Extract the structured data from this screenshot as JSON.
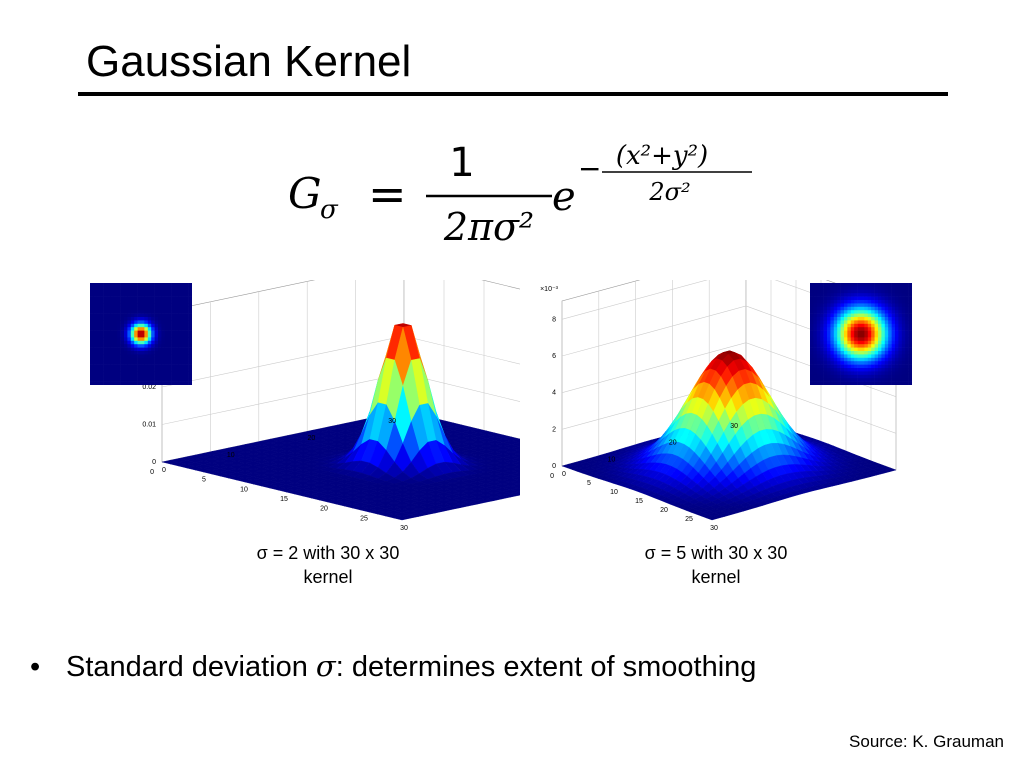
{
  "slide": {
    "title": "Gaussian Kernel",
    "formula": {
      "lhs_symbol": "G",
      "lhs_subscript": "σ",
      "equals": "=",
      "numerator": "1",
      "denominator": "2πσ²",
      "base": "e",
      "exponent_sign": "−",
      "exponent_numerator": "(x²+y²)",
      "exponent_denominator": "2σ²"
    },
    "bullet": {
      "marker": "•",
      "text_before": "Standard deviation ",
      "symbol": "σ",
      "text_after": ": determines extent of smoothing"
    },
    "source": "Source: K. Grauman"
  },
  "chart_data": [
    {
      "type": "surface",
      "caption_line1": "σ = 2 with 30 x 30",
      "caption_line2": "kernel",
      "sigma": 2,
      "kernel_size": 30,
      "x_ticks": [
        "0",
        "5",
        "10",
        "15",
        "20",
        "25",
        "30"
      ],
      "y_ticks": [
        "0",
        "10",
        "20",
        "30"
      ],
      "z_ticks": [
        "0",
        "0.01",
        "0.02"
      ],
      "zlim": [
        0,
        0.04
      ],
      "z_multiplier": "",
      "peak_value": 0.0398,
      "colormap": "jet",
      "grid": true,
      "inset": "heatmap top-left"
    },
    {
      "type": "surface",
      "caption_line1": "σ = 5 with 30 x 30",
      "caption_line2": "kernel",
      "sigma": 5,
      "kernel_size": 30,
      "x_ticks": [
        "0",
        "5",
        "10",
        "15",
        "20",
        "25",
        "30"
      ],
      "y_ticks": [
        "0",
        "10",
        "20",
        "30"
      ],
      "z_ticks": [
        "0",
        "2",
        "4",
        "6",
        "8"
      ],
      "zlim": [
        0,
        0.009
      ],
      "z_multiplier": "×10⁻³",
      "peak_value": 0.00637,
      "colormap": "jet",
      "grid": true,
      "inset": "heatmap top-right"
    }
  ]
}
